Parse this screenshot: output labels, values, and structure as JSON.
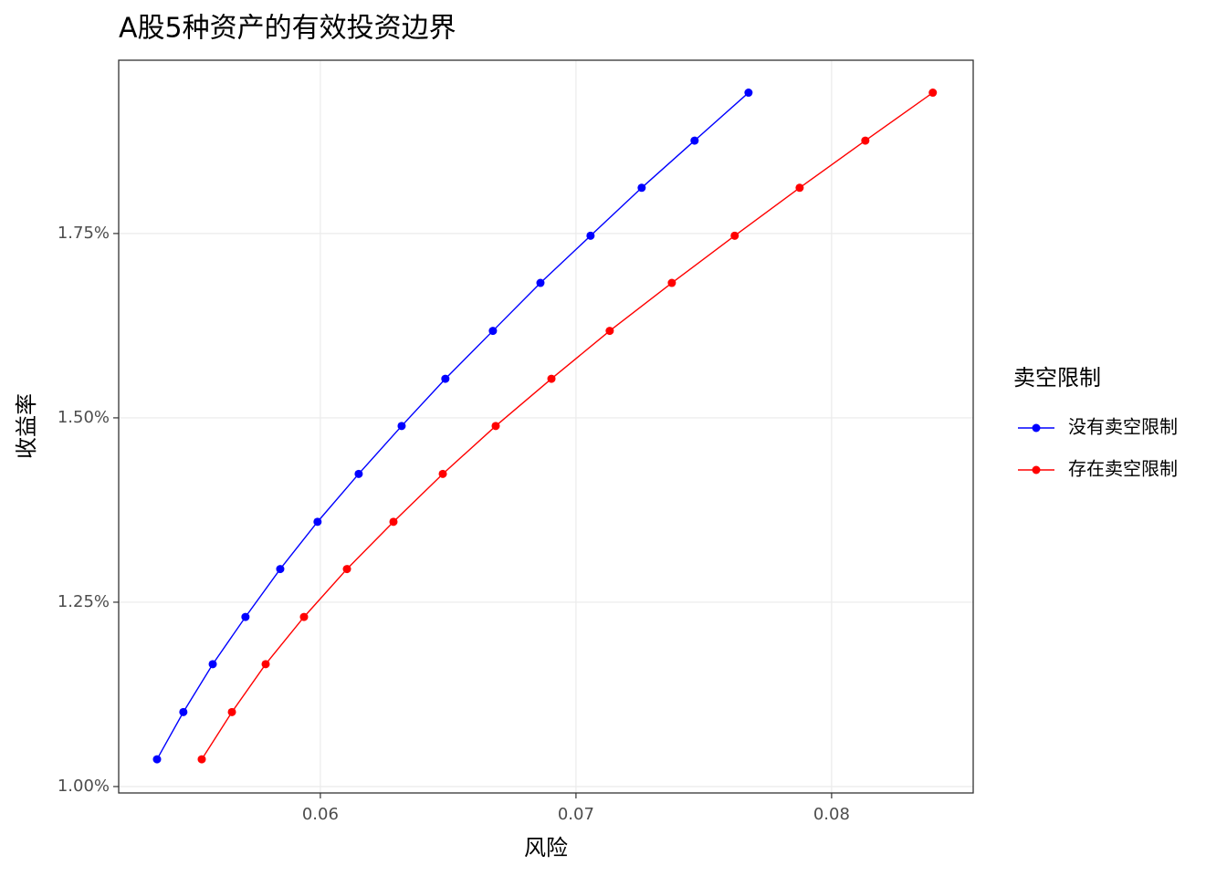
{
  "chart_data": {
    "type": "line",
    "title": "A股5种资产的有效投资边界",
    "x_label": "风险",
    "y_label": "收益率",
    "series": [
      {
        "name": "没有卖空限制",
        "color": "#0000ff",
        "x": [
          0.05361,
          0.05464,
          0.05579,
          0.05707,
          0.05843,
          0.05989,
          0.0615,
          0.06318,
          0.06489,
          0.06675,
          0.06861,
          0.07057,
          0.07257,
          0.07464,
          0.07675
        ],
        "values": [
          1.037,
          1.101,
          1.166,
          1.23,
          1.295,
          1.359,
          1.424,
          1.489,
          1.553,
          1.618,
          1.683,
          1.747,
          1.812,
          1.876,
          1.941
        ]
      },
      {
        "name": "存在卖空限制",
        "color": "#ff0000",
        "x": [
          0.05536,
          0.05654,
          0.05786,
          0.05936,
          0.06104,
          0.06286,
          0.06479,
          0.06686,
          0.06904,
          0.07132,
          0.07375,
          0.07621,
          0.07875,
          0.08132,
          0.08396
        ],
        "values": [
          1.037,
          1.101,
          1.166,
          1.23,
          1.295,
          1.359,
          1.424,
          1.489,
          1.553,
          1.618,
          1.683,
          1.747,
          1.812,
          1.876,
          1.941
        ]
      }
    ],
    "xlim": [
      0.05211,
      0.08554
    ],
    "xticks": [
      0.06,
      0.07,
      0.08
    ],
    "ylim": [
      0.9913,
      1.985
    ],
    "yticks": [
      {
        "value": 1.0,
        "label": "1.00%"
      },
      {
        "value": 1.25,
        "label": "1.25%"
      },
      {
        "value": 1.5,
        "label": "1.50%"
      },
      {
        "value": 1.75,
        "label": "1.75%"
      }
    ],
    "grid": true,
    "legend_title": "卖空限制",
    "legend_position": "right"
  }
}
